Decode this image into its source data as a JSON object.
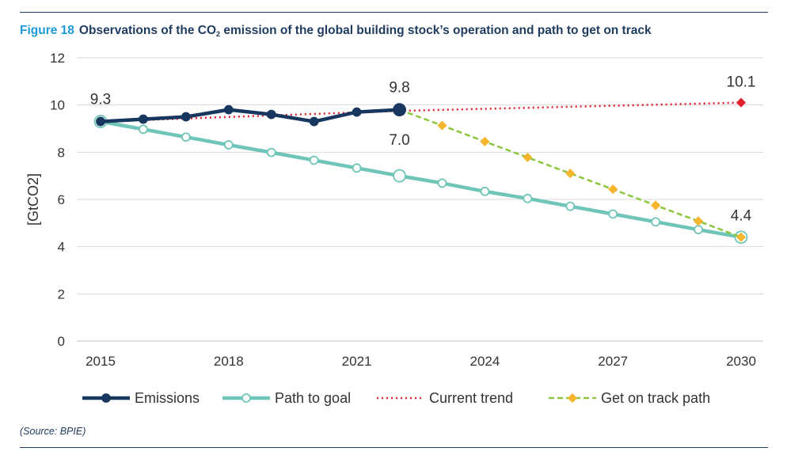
{
  "figure": {
    "label": "Figure 18",
    "title_before_sub": "Observations of the CO",
    "title_sub": "2",
    "title_after_sub": " emission of the global building stock’s operation and path to get on track"
  },
  "source": "(Source: BPIE)",
  "colors": {
    "emissions": "#17375e",
    "path_to_goal": "#6fc5b8",
    "current_trend": "#e3202c",
    "get_on_track": "#8cc63e",
    "get_on_track_marker": "#f5b52d",
    "grid": "#d9d9d9",
    "axis": "#bfbfbf"
  },
  "chart_data": {
    "type": "line",
    "title": "Observations of the CO2 emission of the global building stock’s operation and path to get on track",
    "ylabel": "[GtCO2]",
    "xlabel": "",
    "xlim": [
      2015,
      2030
    ],
    "ylim": [
      0,
      12
    ],
    "x_ticks": [
      "2015",
      "2018",
      "2021",
      "2024",
      "2027",
      "2030"
    ],
    "y_ticks": [
      "0",
      "2",
      "4",
      "6",
      "8",
      "10",
      "12"
    ],
    "grid": true,
    "legend_position": "bottom",
    "series": [
      {
        "name": "Emissions",
        "x": [
          2015,
          2016,
          2017,
          2018,
          2019,
          2020,
          2021,
          2022
        ],
        "values": [
          9.3,
          9.4,
          9.5,
          9.8,
          9.6,
          9.3,
          9.7,
          9.8
        ]
      },
      {
        "name": "Path to goal",
        "x": [
          2015,
          2016,
          2017,
          2018,
          2019,
          2020,
          2021,
          2022,
          2023,
          2024,
          2025,
          2026,
          2027,
          2028,
          2029,
          2030
        ],
        "values": [
          9.3,
          8.97,
          8.64,
          8.31,
          7.99,
          7.66,
          7.33,
          7.0,
          6.69,
          6.34,
          6.04,
          5.71,
          5.38,
          5.05,
          4.72,
          4.4
        ]
      },
      {
        "name": "Current trend",
        "x": [
          2015,
          2022,
          2030
        ],
        "values": [
          9.3,
          9.75,
          10.1
        ]
      },
      {
        "name": "Get on track path",
        "x": [
          2022,
          2023,
          2024,
          2025,
          2026,
          2027,
          2028,
          2029,
          2030
        ],
        "values": [
          9.8,
          9.13,
          8.45,
          7.78,
          7.1,
          6.43,
          5.75,
          5.08,
          4.4
        ]
      }
    ],
    "annotations": [
      {
        "text": "9.3",
        "x": 2015,
        "y": 9.3
      },
      {
        "text": "9.8",
        "x": 2022,
        "y": 9.8
      },
      {
        "text": "7.0",
        "x": 2022,
        "y": 7.0
      },
      {
        "text": "10.1",
        "x": 2030,
        "y": 10.1
      },
      {
        "text": "4.4",
        "x": 2030,
        "y": 4.4
      }
    ]
  }
}
